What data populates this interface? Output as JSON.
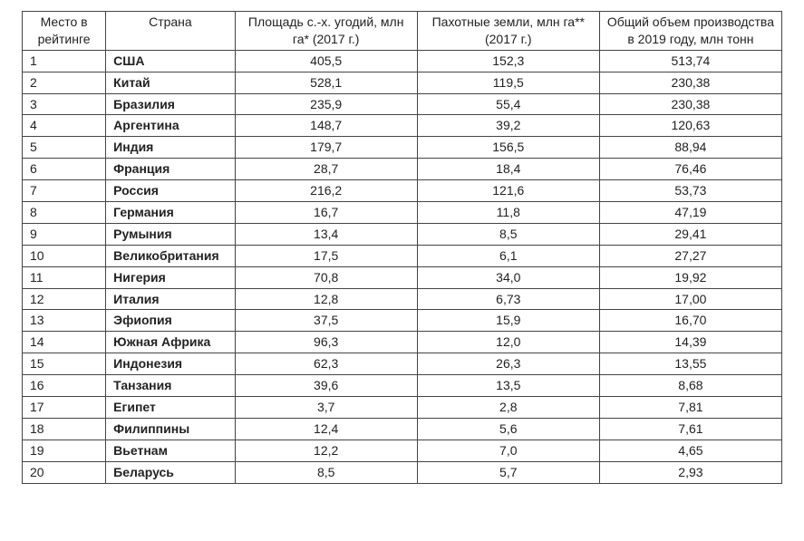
{
  "table": {
    "type": "table",
    "background_color": "#ffffff",
    "border_color": "#444444",
    "text_color": "#222222",
    "font_family": "Arial",
    "header_fontsize": 14,
    "body_fontsize": 14,
    "column_widths_pct": [
      11,
      17,
      24,
      24,
      24
    ],
    "columns": [
      {
        "key": "rank",
        "label": "Место в рейтинге",
        "align": "left"
      },
      {
        "key": "country",
        "label": "Страна",
        "align": "left"
      },
      {
        "key": "agri_area",
        "label": "Площадь с.-х. угодий, млн га* (2017 г.)",
        "align": "center"
      },
      {
        "key": "arable",
        "label": "Пахотные земли, млн га** (2017 г.)",
        "align": "center"
      },
      {
        "key": "production",
        "label": "Общий объем производства в 2019 году, млн тонн",
        "align": "center"
      }
    ],
    "rows": [
      {
        "rank": "1",
        "country": "США",
        "agri_area": "405,5",
        "arable": "152,3",
        "production": "513,74"
      },
      {
        "rank": "2",
        "country": "Китай",
        "agri_area": "528,1",
        "arable": "119,5",
        "production": "230,38"
      },
      {
        "rank": "3",
        "country": "Бразилия",
        "agri_area": "235,9",
        "arable": "55,4",
        "production": "230,38"
      },
      {
        "rank": "4",
        "country": "Аргентина",
        "agri_area": "148,7",
        "arable": "39,2",
        "production": "120,63"
      },
      {
        "rank": "5",
        "country": "Индия",
        "agri_area": "179,7",
        "arable": "156,5",
        "production": "88,94"
      },
      {
        "rank": "6",
        "country": "Франция",
        "agri_area": "28,7",
        "arable": "18,4",
        "production": "76,46"
      },
      {
        "rank": "7",
        "country": "Россия",
        "agri_area": "216,2",
        "arable": "121,6",
        "production": "53,73"
      },
      {
        "rank": "8",
        "country": "Германия",
        "agri_area": "16,7",
        "arable": "11,8",
        "production": "47,19"
      },
      {
        "rank": "9",
        "country": "Румыния",
        "agri_area": "13,4",
        "arable": "8,5",
        "production": "29,41"
      },
      {
        "rank": "10",
        "country": "Великобритания",
        "agri_area": "17,5",
        "arable": "6,1",
        "production": "27,27"
      },
      {
        "rank": "11",
        "country": "Нигерия",
        "agri_area": "70,8",
        "arable": "34,0",
        "production": "19,92"
      },
      {
        "rank": "12",
        "country": "Италия",
        "agri_area": "12,8",
        "arable": "6,73",
        "production": "17,00"
      },
      {
        "rank": "13",
        "country": "Эфиопия",
        "agri_area": "37,5",
        "arable": "15,9",
        "production": "16,70"
      },
      {
        "rank": "14",
        "country": "Южная Африка",
        "agri_area": "96,3",
        "arable": "12,0",
        "production": "14,39"
      },
      {
        "rank": "15",
        "country": "Индонезия",
        "agri_area": "62,3",
        "arable": "26,3",
        "production": "13,55"
      },
      {
        "rank": "16",
        "country": "Танзания",
        "agri_area": "39,6",
        "arable": "13,5",
        "production": "8,68"
      },
      {
        "rank": "17",
        "country": "Египет",
        "agri_area": "3,7",
        "arable": "2,8",
        "production": "7,81"
      },
      {
        "rank": "18",
        "country": "Филиппины",
        "agri_area": "12,4",
        "arable": "5,6",
        "production": "7,61"
      },
      {
        "rank": "19",
        "country": "Вьетнам",
        "agri_area": "12,2",
        "arable": "7,0",
        "production": "4,65"
      },
      {
        "rank": "20",
        "country": "Беларусь",
        "agri_area": "8,5",
        "arable": "5,7",
        "production": "2,93"
      }
    ]
  }
}
